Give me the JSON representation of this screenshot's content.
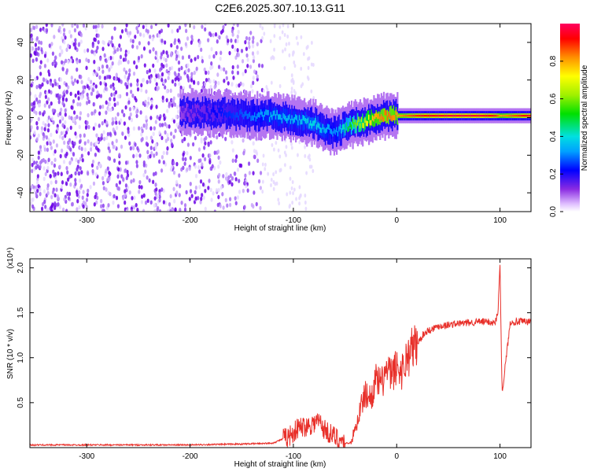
{
  "title": "C2E6.2025.307.10.13.G11",
  "colors": {
    "snr_line": "#e8302a",
    "axis": "#000000",
    "background": "#ffffff",
    "scatter_low": "#e6d9ff",
    "scatter_high": "#6a00e6"
  },
  "colorbar": {
    "label": "Normalized spectral amplitude",
    "ticks": [
      "0.0",
      "0.2",
      "0.4",
      "0.6",
      "0.8"
    ],
    "tick_values": [
      0.0,
      0.2,
      0.4,
      0.6,
      0.8
    ],
    "range": [
      0,
      1
    ]
  },
  "chart_data": [
    {
      "type": "heatmap",
      "name": "spectrogram",
      "xlabel": "Height of straight line (km)",
      "ylabel": "Frequency (Hz)",
      "xlim": [
        -355,
        130
      ],
      "ylim": [
        -50,
        50
      ],
      "xticks": [
        -300,
        -200,
        -100,
        0,
        100
      ],
      "xtick_labels": [
        "-300",
        "-200",
        "-100",
        "0",
        "100"
      ],
      "yticks": [
        -40,
        -20,
        0,
        20,
        40
      ],
      "ytick_labels": [
        "-40",
        "-20",
        "0",
        "20",
        "40"
      ],
      "signal_track": {
        "x": [
          -210,
          -160,
          -140,
          -120,
          -100,
          -80,
          -70,
          -60,
          -50,
          -40,
          -30,
          -20,
          -10,
          0,
          20,
          50,
          80,
          95,
          100,
          130
        ],
        "freq_center": [
          3,
          2,
          1,
          1,
          -1,
          -3,
          -6,
          -8,
          -5,
          -3,
          -2,
          0,
          1,
          1,
          1,
          1,
          1,
          1,
          1,
          1
        ],
        "amplitude": [
          0.15,
          0.25,
          0.3,
          0.35,
          0.35,
          0.4,
          0.35,
          0.3,
          0.45,
          0.6,
          0.7,
          0.8,
          0.85,
          0.8,
          0.9,
          0.95,
          0.95,
          0.9,
          0.8,
          0.95
        ]
      },
      "noise_extent_x": [
        -355,
        -130
      ],
      "sparse_noise_extent_x": [
        -130,
        -80
      ]
    },
    {
      "type": "line",
      "name": "snr",
      "xlabel": "Height of straight line (km)",
      "ylabel": "SNR (10 * v/v)",
      "y_scale_label": "(x10⁴)",
      "xlim": [
        -355,
        130
      ],
      "ylim": [
        0,
        2.1
      ],
      "xticks": [
        -300,
        -200,
        -100,
        0,
        100
      ],
      "xtick_labels": [
        "-300",
        "-200",
        "-100",
        "0",
        "100"
      ],
      "yticks": [
        0.5,
        1.0,
        1.5,
        2.0
      ],
      "ytick_labels": [
        "0.5",
        "1.0",
        "1.5",
        "2.0"
      ],
      "series": [
        {
          "name": "SNR",
          "x": [
            -355,
            -300,
            -200,
            -150,
            -120,
            -105,
            -95,
            -85,
            -75,
            -70,
            -60,
            -50,
            -45,
            -40,
            -35,
            -30,
            -25,
            -20,
            -15,
            -10,
            -5,
            0,
            5,
            10,
            15,
            20,
            25,
            30,
            40,
            60,
            80,
            90,
            95,
            98,
            100,
            102,
            110,
            130
          ],
          "y": [
            0.03,
            0.03,
            0.03,
            0.04,
            0.05,
            0.12,
            0.22,
            0.25,
            0.3,
            0.2,
            0.12,
            0.05,
            0.05,
            0.2,
            0.45,
            0.6,
            0.55,
            0.75,
            0.7,
            0.85,
            0.8,
            0.9,
            0.85,
            1.0,
            1.1,
            1.15,
            1.25,
            1.3,
            1.35,
            1.38,
            1.4,
            1.4,
            1.38,
            1.5,
            2.05,
            0.6,
            1.4,
            1.4
          ]
        }
      ]
    }
  ]
}
